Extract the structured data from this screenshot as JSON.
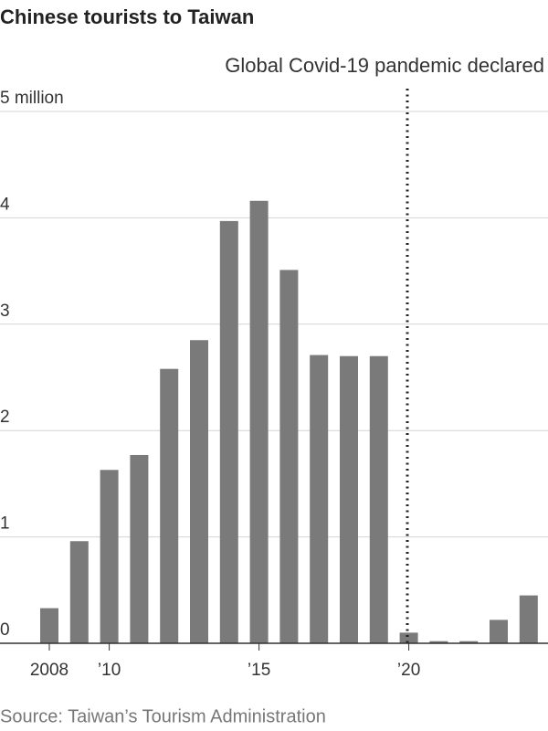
{
  "chart_data": {
    "type": "bar",
    "title": "Chinese tourists to Taiwan",
    "annotation": "Global Covid-19 pandemic declared",
    "source": "Source: Taiwan’s Tourism Administration",
    "categories": [
      "2008",
      null,
      "’10",
      null,
      null,
      null,
      null,
      "’15",
      null,
      null,
      null,
      null,
      "’20",
      null,
      null,
      null,
      null
    ],
    "values": [
      0.33,
      0.96,
      1.63,
      1.77,
      2.58,
      2.85,
      3.97,
      4.16,
      3.51,
      2.71,
      2.7,
      2.7,
      0.1,
      0.02,
      0.02,
      0.22,
      0.45
    ],
    "color": "#7a7a7a",
    "ylim": [
      0,
      5
    ],
    "yticks": [
      0,
      1,
      2,
      3,
      4,
      {
        "value": 5,
        "label": "5 million"
      }
    ],
    "grid": true
  }
}
